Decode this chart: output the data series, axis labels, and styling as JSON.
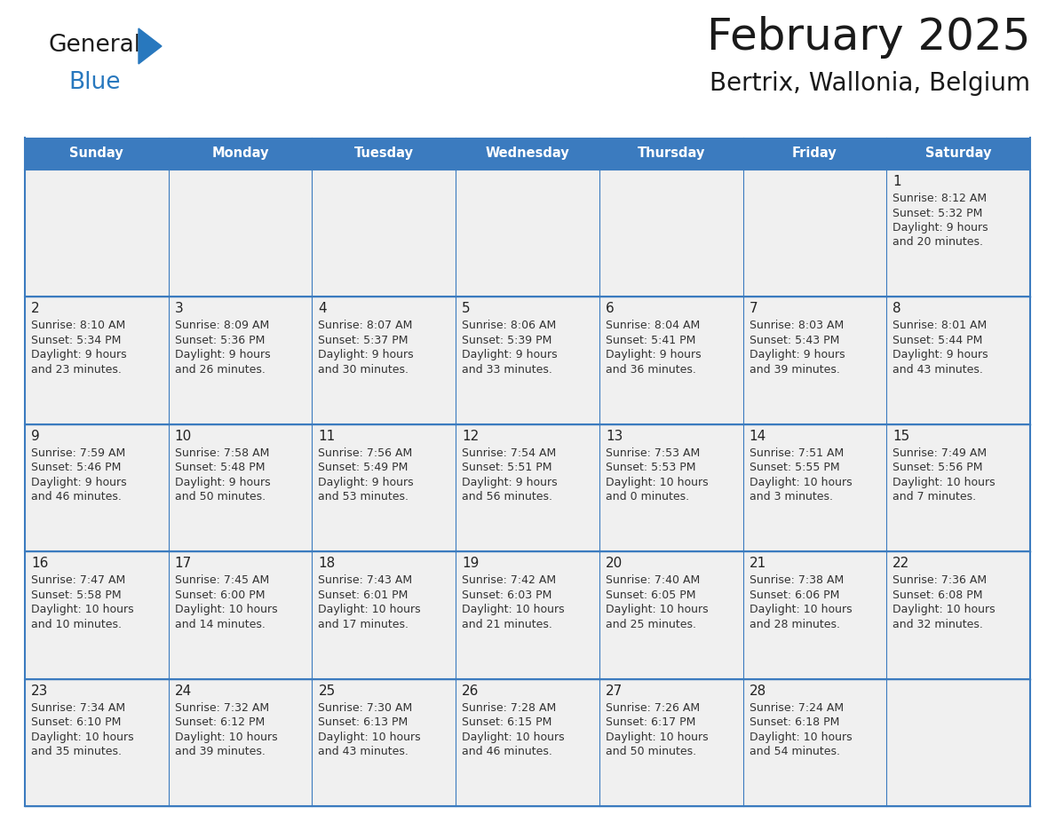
{
  "title": "February 2025",
  "subtitle": "Bertrix, Wallonia, Belgium",
  "days_of_week": [
    "Sunday",
    "Monday",
    "Tuesday",
    "Wednesday",
    "Thursday",
    "Friday",
    "Saturday"
  ],
  "header_bg": "#3b7bbf",
  "header_text": "#ffffff",
  "cell_bg": "#f0f0f0",
  "border_color": "#3b7bbf",
  "day_number_color": "#222222",
  "text_color": "#333333",
  "title_color": "#1a1a1a",
  "logo_general_color": "#1a1a1a",
  "logo_blue_color": "#2878be",
  "calendar_data": [
    [
      {
        "day": null,
        "info": null
      },
      {
        "day": null,
        "info": null
      },
      {
        "day": null,
        "info": null
      },
      {
        "day": null,
        "info": null
      },
      {
        "day": null,
        "info": null
      },
      {
        "day": null,
        "info": null
      },
      {
        "day": 1,
        "info": "Sunrise: 8:12 AM\nSunset: 5:32 PM\nDaylight: 9 hours\nand 20 minutes."
      }
    ],
    [
      {
        "day": 2,
        "info": "Sunrise: 8:10 AM\nSunset: 5:34 PM\nDaylight: 9 hours\nand 23 minutes."
      },
      {
        "day": 3,
        "info": "Sunrise: 8:09 AM\nSunset: 5:36 PM\nDaylight: 9 hours\nand 26 minutes."
      },
      {
        "day": 4,
        "info": "Sunrise: 8:07 AM\nSunset: 5:37 PM\nDaylight: 9 hours\nand 30 minutes."
      },
      {
        "day": 5,
        "info": "Sunrise: 8:06 AM\nSunset: 5:39 PM\nDaylight: 9 hours\nand 33 minutes."
      },
      {
        "day": 6,
        "info": "Sunrise: 8:04 AM\nSunset: 5:41 PM\nDaylight: 9 hours\nand 36 minutes."
      },
      {
        "day": 7,
        "info": "Sunrise: 8:03 AM\nSunset: 5:43 PM\nDaylight: 9 hours\nand 39 minutes."
      },
      {
        "day": 8,
        "info": "Sunrise: 8:01 AM\nSunset: 5:44 PM\nDaylight: 9 hours\nand 43 minutes."
      }
    ],
    [
      {
        "day": 9,
        "info": "Sunrise: 7:59 AM\nSunset: 5:46 PM\nDaylight: 9 hours\nand 46 minutes."
      },
      {
        "day": 10,
        "info": "Sunrise: 7:58 AM\nSunset: 5:48 PM\nDaylight: 9 hours\nand 50 minutes."
      },
      {
        "day": 11,
        "info": "Sunrise: 7:56 AM\nSunset: 5:49 PM\nDaylight: 9 hours\nand 53 minutes."
      },
      {
        "day": 12,
        "info": "Sunrise: 7:54 AM\nSunset: 5:51 PM\nDaylight: 9 hours\nand 56 minutes."
      },
      {
        "day": 13,
        "info": "Sunrise: 7:53 AM\nSunset: 5:53 PM\nDaylight: 10 hours\nand 0 minutes."
      },
      {
        "day": 14,
        "info": "Sunrise: 7:51 AM\nSunset: 5:55 PM\nDaylight: 10 hours\nand 3 minutes."
      },
      {
        "day": 15,
        "info": "Sunrise: 7:49 AM\nSunset: 5:56 PM\nDaylight: 10 hours\nand 7 minutes."
      }
    ],
    [
      {
        "day": 16,
        "info": "Sunrise: 7:47 AM\nSunset: 5:58 PM\nDaylight: 10 hours\nand 10 minutes."
      },
      {
        "day": 17,
        "info": "Sunrise: 7:45 AM\nSunset: 6:00 PM\nDaylight: 10 hours\nand 14 minutes."
      },
      {
        "day": 18,
        "info": "Sunrise: 7:43 AM\nSunset: 6:01 PM\nDaylight: 10 hours\nand 17 minutes."
      },
      {
        "day": 19,
        "info": "Sunrise: 7:42 AM\nSunset: 6:03 PM\nDaylight: 10 hours\nand 21 minutes."
      },
      {
        "day": 20,
        "info": "Sunrise: 7:40 AM\nSunset: 6:05 PM\nDaylight: 10 hours\nand 25 minutes."
      },
      {
        "day": 21,
        "info": "Sunrise: 7:38 AM\nSunset: 6:06 PM\nDaylight: 10 hours\nand 28 minutes."
      },
      {
        "day": 22,
        "info": "Sunrise: 7:36 AM\nSunset: 6:08 PM\nDaylight: 10 hours\nand 32 minutes."
      }
    ],
    [
      {
        "day": 23,
        "info": "Sunrise: 7:34 AM\nSunset: 6:10 PM\nDaylight: 10 hours\nand 35 minutes."
      },
      {
        "day": 24,
        "info": "Sunrise: 7:32 AM\nSunset: 6:12 PM\nDaylight: 10 hours\nand 39 minutes."
      },
      {
        "day": 25,
        "info": "Sunrise: 7:30 AM\nSunset: 6:13 PM\nDaylight: 10 hours\nand 43 minutes."
      },
      {
        "day": 26,
        "info": "Sunrise: 7:28 AM\nSunset: 6:15 PM\nDaylight: 10 hours\nand 46 minutes."
      },
      {
        "day": 27,
        "info": "Sunrise: 7:26 AM\nSunset: 6:17 PM\nDaylight: 10 hours\nand 50 minutes."
      },
      {
        "day": 28,
        "info": "Sunrise: 7:24 AM\nSunset: 6:18 PM\nDaylight: 10 hours\nand 54 minutes."
      },
      {
        "day": null,
        "info": null
      }
    ]
  ]
}
